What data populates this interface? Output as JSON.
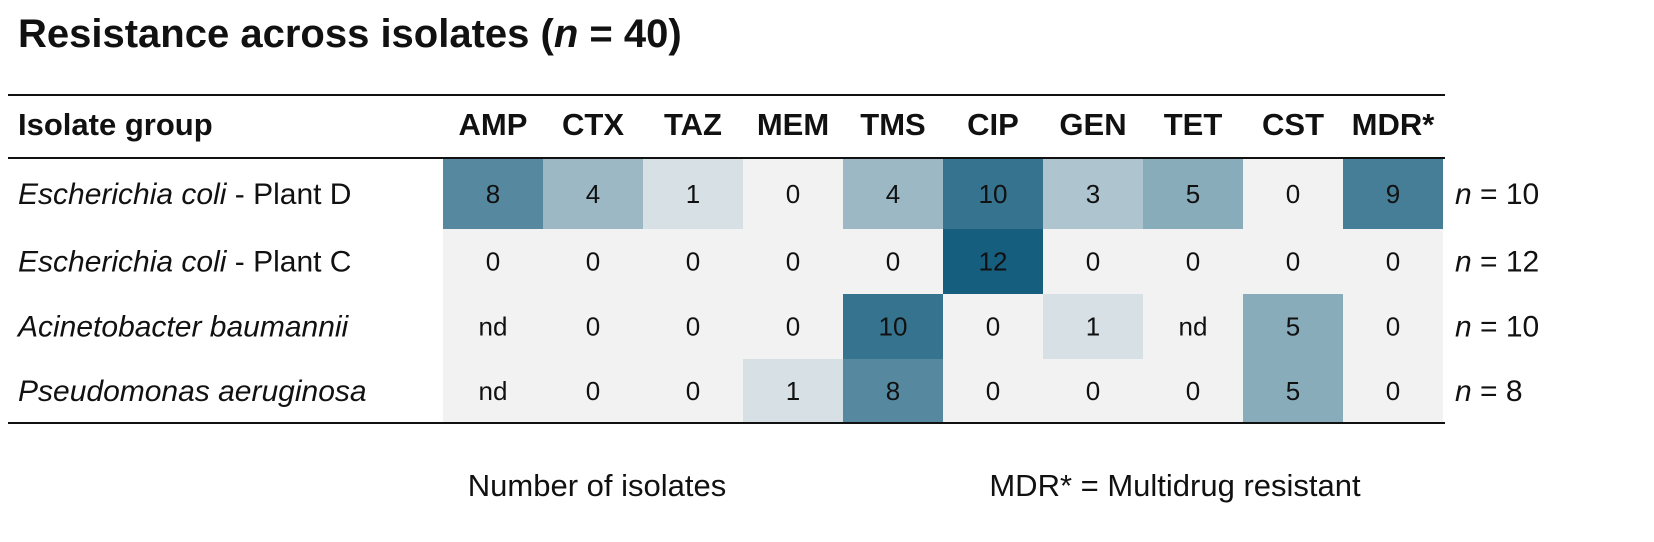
{
  "title": {
    "text": "Resistance across isolates (",
    "italic": "n",
    "rest": " = 40)"
  },
  "table": {
    "header": [
      "Isolate group",
      "AMP",
      "CTX",
      "TAZ",
      "MEM",
      "TMS",
      "CIP",
      "GEN",
      "TET",
      "CST",
      "MDR*"
    ],
    "rows": [
      {
        "name": "Escherichia coli",
        "suffix": " - Plant D",
        "cells": [
          8,
          4,
          1,
          0,
          4,
          10,
          3,
          5,
          0,
          9
        ],
        "n_label": "n",
        "n_value": " = 10"
      },
      {
        "name": "Escherichia coli",
        "suffix": " - Plant C",
        "cells": [
          0,
          0,
          0,
          0,
          0,
          12,
          0,
          0,
          0,
          0
        ],
        "n_label": "n",
        "n_value": " = 12"
      },
      {
        "name": "Acinetobacter baumannii",
        "suffix": null,
        "cells": [
          "nd",
          0,
          0,
          0,
          10,
          0,
          1,
          "nd",
          5,
          0
        ],
        "n_label": "n",
        "n_value": " = 10"
      },
      {
        "name": "Pseudomonas aeruginosa",
        "suffix": null,
        "cells": [
          "nd",
          0,
          0,
          1,
          8,
          0,
          0,
          0,
          5,
          0
        ],
        "n_label": "n",
        "n_value": " = 8"
      }
    ]
  },
  "footer": [
    "Number of isolates",
    "MDR* = Multidrug resistant"
  ]
}
